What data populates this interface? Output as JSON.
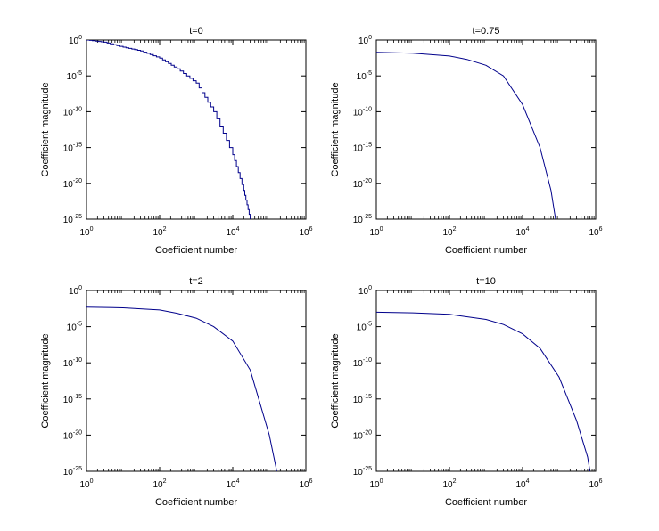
{
  "chart_data": [
    {
      "type": "line",
      "title": "t=0",
      "xlabel": "Coefficient number",
      "ylabel": "Coefficient magnitude",
      "xscale": "log",
      "yscale": "log",
      "xlim": [
        1,
        1000000
      ],
      "ylim": [
        1e-25,
        1
      ],
      "grid": false,
      "line_style": "stepped",
      "xticks": [
        {
          "base": "10",
          "exp": "0"
        },
        {
          "base": "10",
          "exp": "2"
        },
        {
          "base": "10",
          "exp": "4"
        },
        {
          "base": "10",
          "exp": "6"
        }
      ],
      "yticks": [
        {
          "base": "10",
          "exp": "0"
        },
        {
          "base": "10",
          "exp": "-5"
        },
        {
          "base": "10",
          "exp": "-10"
        },
        {
          "base": "10",
          "exp": "-15"
        },
        {
          "base": "10",
          "exp": "-20"
        },
        {
          "base": "10",
          "exp": "-25"
        }
      ],
      "x": [
        1,
        3,
        10,
        30,
        100,
        300,
        1000,
        3000,
        10000,
        20000,
        30000
      ],
      "y": [
        1,
        0.5,
        0.1,
        0.03,
        0.003,
        0.0001,
        1e-06,
        1e-10,
        1e-16,
        1e-21,
        1e-25
      ]
    },
    {
      "type": "line",
      "title": "t=0.75",
      "xlabel": "Coefficient number",
      "ylabel": "Coefficient magnitude",
      "xscale": "log",
      "yscale": "log",
      "xlim": [
        1,
        1000000
      ],
      "ylim": [
        1e-25,
        1
      ],
      "grid": false,
      "xticks": [
        {
          "base": "10",
          "exp": "0"
        },
        {
          "base": "10",
          "exp": "2"
        },
        {
          "base": "10",
          "exp": "4"
        },
        {
          "base": "10",
          "exp": "6"
        }
      ],
      "yticks": [
        {
          "base": "10",
          "exp": "0"
        },
        {
          "base": "10",
          "exp": "-5"
        },
        {
          "base": "10",
          "exp": "-10"
        },
        {
          "base": "10",
          "exp": "-15"
        },
        {
          "base": "10",
          "exp": "-20"
        },
        {
          "base": "10",
          "exp": "-25"
        }
      ],
      "x": [
        1,
        10,
        100,
        300,
        1000,
        3000,
        10000,
        30000,
        60000,
        80000
      ],
      "y": [
        0.02,
        0.015,
        0.006,
        0.002,
        0.0003,
        1e-05,
        1e-09,
        1e-15,
        1e-21,
        1e-25
      ]
    },
    {
      "type": "line",
      "title": "t=2",
      "xlabel": "Coefficient number",
      "ylabel": "Coefficient magnitude",
      "xscale": "log",
      "yscale": "log",
      "xlim": [
        1,
        1000000
      ],
      "ylim": [
        1e-25,
        1
      ],
      "grid": false,
      "xticks": [
        {
          "base": "10",
          "exp": "0"
        },
        {
          "base": "10",
          "exp": "2"
        },
        {
          "base": "10",
          "exp": "4"
        },
        {
          "base": "10",
          "exp": "6"
        }
      ],
      "yticks": [
        {
          "base": "10",
          "exp": "0"
        },
        {
          "base": "10",
          "exp": "-5"
        },
        {
          "base": "10",
          "exp": "-10"
        },
        {
          "base": "10",
          "exp": "-15"
        },
        {
          "base": "10",
          "exp": "-20"
        },
        {
          "base": "10",
          "exp": "-25"
        }
      ],
      "x": [
        1,
        10,
        100,
        300,
        1000,
        3000,
        10000,
        30000,
        100000,
        160000
      ],
      "y": [
        0.005,
        0.004,
        0.002,
        0.0007,
        0.00015,
        1e-05,
        1e-07,
        1e-11,
        1e-20,
        1e-25
      ]
    },
    {
      "type": "line",
      "title": "t=10",
      "xlabel": "Coefficient number",
      "ylabel": "Coefficient magnitude",
      "xscale": "log",
      "yscale": "log",
      "xlim": [
        1,
        1000000
      ],
      "ylim": [
        1e-25,
        1
      ],
      "grid": false,
      "xticks": [
        {
          "base": "10",
          "exp": "0"
        },
        {
          "base": "10",
          "exp": "2"
        },
        {
          "base": "10",
          "exp": "4"
        },
        {
          "base": "10",
          "exp": "6"
        }
      ],
      "yticks": [
        {
          "base": "10",
          "exp": "0"
        },
        {
          "base": "10",
          "exp": "-5"
        },
        {
          "base": "10",
          "exp": "-10"
        },
        {
          "base": "10",
          "exp": "-15"
        },
        {
          "base": "10",
          "exp": "-20"
        },
        {
          "base": "10",
          "exp": "-25"
        }
      ],
      "x": [
        1,
        10,
        100,
        1000,
        3000,
        10000,
        30000,
        100000,
        300000,
        600000,
        700000
      ],
      "y": [
        0.001,
        0.0008,
        0.0005,
        0.0001,
        2e-05,
        1e-06,
        1e-08,
        1e-12,
        1e-18,
        1e-23,
        1e-25
      ]
    }
  ]
}
